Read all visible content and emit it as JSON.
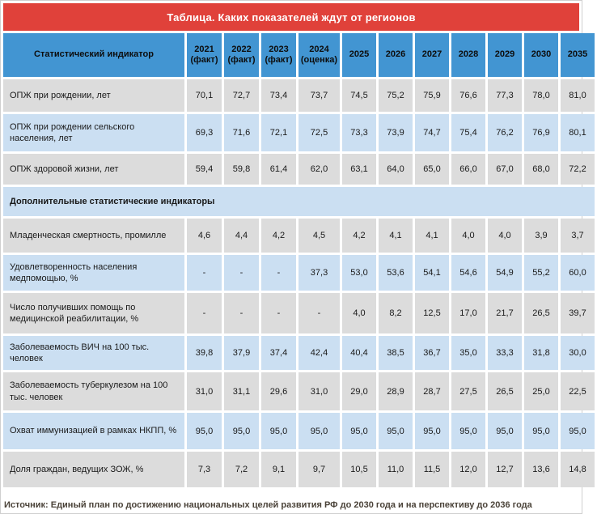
{
  "colors": {
    "title_bar_bg": "#e0413a",
    "title_text": "#ffffff",
    "header_bg": "#4295d2",
    "row_gray_bg": "#dcdcdc",
    "row_blue_bg": "#cbdff2",
    "source_text": "#4a4238"
  },
  "chart_data": {
    "type": "table",
    "title": "Таблица. Каких показателей ждут от регионов",
    "indicator_header": "Статистический индикатор",
    "columns": [
      "2021\n(факт)",
      "2022\n(факт)",
      "2023\n(факт)",
      "2024\n(оценка)",
      "2025",
      "2026",
      "2027",
      "2028",
      "2029",
      "2030",
      "2035"
    ],
    "rows": [
      {
        "type": "data",
        "label": "ОПЖ при рождении, лет",
        "values": [
          "70,1",
          "72,7",
          "73,4",
          "73,7",
          "74,5",
          "75,2",
          "75,9",
          "76,6",
          "77,3",
          "78,0",
          "81,0"
        ]
      },
      {
        "type": "data",
        "label": "ОПЖ при рождении сельского населения, лет",
        "values": [
          "69,3",
          "71,6",
          "72,1",
          "72,5",
          "73,3",
          "73,9",
          "74,7",
          "75,4",
          "76,2",
          "76,9",
          "80,1"
        ]
      },
      {
        "type": "data",
        "label": "ОПЖ здоровой жизни, лет",
        "values": [
          "59,4",
          "59,8",
          "61,4",
          "62,0",
          "63,1",
          "64,0",
          "65,0",
          "66,0",
          "67,0",
          "68,0",
          "72,2"
        ]
      },
      {
        "type": "section",
        "label": "Дополнительные статистические индикаторы"
      },
      {
        "type": "data",
        "label": "Младенческая смертность, промилле",
        "values": [
          "4,6",
          "4,4",
          "4,2",
          "4,5",
          "4,2",
          "4,1",
          "4,1",
          "4,0",
          "4,0",
          "3,9",
          "3,7"
        ]
      },
      {
        "type": "data",
        "label": "Удовлетворенность населения медпомощью, %",
        "values": [
          "-",
          "-",
          "-",
          "37,3",
          "53,0",
          "53,6",
          "54,1",
          "54,6",
          "54,9",
          "55,2",
          "60,0"
        ]
      },
      {
        "type": "data",
        "label": "Число получивших помощь по медицинской реабилитации, %",
        "values": [
          "-",
          "-",
          "-",
          "-",
          "4,0",
          "8,2",
          "12,5",
          "17,0",
          "21,7",
          "26,5",
          "39,7"
        ]
      },
      {
        "type": "data",
        "label": "Заболеваемость ВИЧ на 100 тыс. человек",
        "values": [
          "39,8",
          "37,9",
          "37,4",
          "42,4",
          "40,4",
          "38,5",
          "36,7",
          "35,0",
          "33,3",
          "31,8",
          "30,0"
        ]
      },
      {
        "type": "data",
        "label": "Заболеваемость туберкулезом на 100 тыс. человек",
        "values": [
          "31,0",
          "31,1",
          "29,6",
          "31,0",
          "29,0",
          "28,9",
          "28,7",
          "27,5",
          "26,5",
          "25,0",
          "22,5"
        ]
      },
      {
        "type": "data",
        "label": "Охват иммунизацией в рамках НКПП, %",
        "values": [
          "95,0",
          "95,0",
          "95,0",
          "95,0",
          "95,0",
          "95,0",
          "95,0",
          "95,0",
          "95,0",
          "95,0",
          "95,0"
        ]
      },
      {
        "type": "data",
        "label": "Доля граждан, ведущих ЗОЖ, %",
        "values": [
          "7,3",
          "7,2",
          "9,1",
          "9,7",
          "10,5",
          "11,0",
          "11,5",
          "12,0",
          "12,7",
          "13,6",
          "14,8"
        ]
      }
    ],
    "source": "Источник: Единый план по достижению национальных целей развития РФ до 2030 года и на перспективу до 2036 года"
  }
}
